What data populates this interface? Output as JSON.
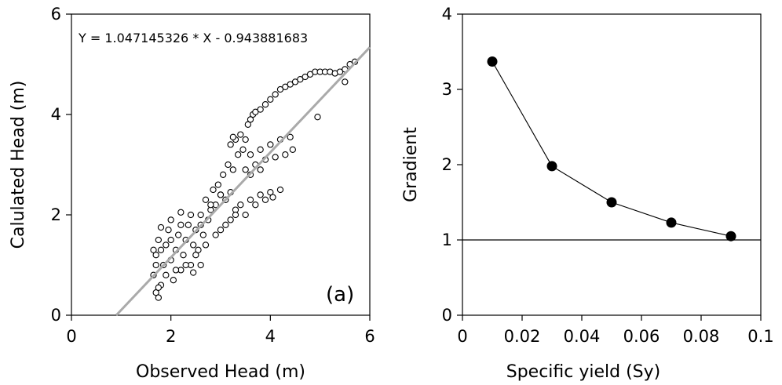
{
  "chart_data": [
    {
      "type": "scatter",
      "panel_label": "(a)",
      "equation": "Y = 1.047145326 * X - 0.943881683",
      "xlabel": "Observed Head (m)",
      "ylabel": "Calulated Head (m)",
      "xlim": [
        0,
        6
      ],
      "ylim": [
        0,
        6
      ],
      "xticks": [
        "0",
        "2",
        "4",
        "6"
      ],
      "yticks": [
        "0",
        "2",
        "4",
        "6"
      ],
      "grid": false,
      "regression_line": {
        "slope": 1.047145326,
        "intercept": -0.943881683,
        "color": "#aaaaaa"
      },
      "series": [
        {
          "marker": "open-circle",
          "points": [
            [
              1.65,
              0.8
            ],
            [
              1.7,
              1.2
            ],
            [
              1.75,
              1.5
            ],
            [
              1.7,
              0.45
            ],
            [
              1.75,
              0.35
            ],
            [
              1.8,
              0.6
            ],
            [
              1.85,
              1.0
            ],
            [
              1.9,
              1.4
            ],
            [
              1.95,
              1.7
            ],
            [
              2.0,
              1.1
            ],
            [
              2.05,
              0.7
            ],
            [
              2.1,
              1.3
            ],
            [
              2.15,
              1.6
            ],
            [
              2.2,
              0.9
            ],
            [
              2.25,
              1.2
            ],
            [
              2.3,
              1.5
            ],
            [
              2.35,
              1.8
            ],
            [
              2.4,
              1.0
            ],
            [
              2.45,
              1.4
            ],
            [
              2.5,
              1.7
            ],
            [
              2.55,
              1.3
            ],
            [
              2.6,
              2.0
            ],
            [
              2.65,
              1.6
            ],
            [
              2.7,
              2.3
            ],
            [
              2.75,
              1.9
            ],
            [
              2.8,
              2.1
            ],
            [
              2.85,
              2.5
            ],
            [
              2.9,
              2.2
            ],
            [
              2.95,
              2.6
            ],
            [
              3.0,
              2.4
            ],
            [
              3.05,
              2.8
            ],
            [
              3.1,
              2.3
            ],
            [
              3.15,
              3.0
            ],
            [
              3.2,
              3.4
            ],
            [
              3.25,
              2.9
            ],
            [
              3.3,
              3.5
            ],
            [
              3.35,
              3.2
            ],
            [
              3.4,
              3.6
            ],
            [
              3.45,
              3.3
            ],
            [
              3.5,
              3.5
            ],
            [
              3.55,
              3.8
            ],
            [
              3.6,
              3.9
            ],
            [
              3.65,
              4.0
            ],
            [
              3.7,
              4.05
            ],
            [
              3.8,
              4.1
            ],
            [
              3.9,
              4.2
            ],
            [
              4.0,
              4.3
            ],
            [
              4.1,
              4.4
            ],
            [
              4.2,
              4.5
            ],
            [
              4.3,
              4.55
            ],
            [
              4.4,
              4.6
            ],
            [
              4.5,
              4.65
            ],
            [
              4.6,
              4.7
            ],
            [
              4.7,
              4.75
            ],
            [
              4.8,
              4.8
            ],
            [
              4.9,
              4.85
            ],
            [
              5.0,
              4.85
            ],
            [
              5.1,
              4.85
            ],
            [
              5.2,
              4.85
            ],
            [
              5.3,
              4.82
            ],
            [
              5.4,
              4.85
            ],
            [
              5.5,
              4.9
            ],
            [
              5.6,
              5.0
            ],
            [
              5.7,
              5.05
            ],
            [
              4.95,
              3.95
            ],
            [
              5.5,
              4.65
            ],
            [
              3.5,
              2.9
            ],
            [
              3.7,
              3.0
            ],
            [
              3.9,
              3.1
            ],
            [
              4.1,
              3.15
            ],
            [
              4.3,
              3.2
            ],
            [
              4.45,
              3.3
            ],
            [
              3.6,
              3.2
            ],
            [
              3.8,
              3.3
            ],
            [
              4.0,
              3.4
            ],
            [
              4.2,
              3.5
            ],
            [
              4.4,
              3.55
            ],
            [
              3.0,
              2.4
            ],
            [
              3.2,
              2.45
            ],
            [
              3.4,
              2.2
            ],
            [
              3.6,
              2.3
            ],
            [
              3.8,
              2.4
            ],
            [
              4.0,
              2.45
            ],
            [
              3.3,
              2.1
            ],
            [
              3.5,
              2.0
            ],
            [
              3.7,
              2.2
            ],
            [
              3.9,
              2.3
            ],
            [
              3.0,
              1.7
            ],
            [
              3.2,
              1.9
            ],
            [
              2.8,
              2.2
            ],
            [
              2.6,
              1.8
            ],
            [
              2.4,
              2.0
            ],
            [
              2.2,
              1.8
            ],
            [
              2.0,
              1.5
            ],
            [
              1.8,
              1.3
            ],
            [
              1.7,
              1.0
            ],
            [
              1.9,
              0.8
            ],
            [
              2.1,
              0.9
            ],
            [
              2.3,
              1.0
            ],
            [
              2.5,
              1.2
            ],
            [
              2.7,
              1.4
            ],
            [
              2.9,
              1.6
            ],
            [
              3.1,
              1.8
            ],
            [
              3.3,
              2.0
            ],
            [
              3.6,
              2.8
            ],
            [
              3.8,
              2.9
            ],
            [
              4.2,
              2.5
            ],
            [
              4.05,
              2.35
            ],
            [
              2.6,
              1.0
            ],
            [
              2.45,
              0.85
            ],
            [
              1.8,
              1.75
            ],
            [
              2.0,
              1.9
            ],
            [
              2.2,
              2.05
            ],
            [
              1.65,
              1.3
            ],
            [
              1.75,
              0.55
            ],
            [
              3.25,
              3.55
            ]
          ]
        }
      ]
    },
    {
      "type": "line",
      "xlabel": "Specific yield (Sy)",
      "ylabel": "Gradient",
      "xlim": [
        0,
        0.1
      ],
      "ylim": [
        0,
        4
      ],
      "xticks": [
        "0",
        "0.02",
        "0.04",
        "0.06",
        "0.08",
        "0.1"
      ],
      "yticks": [
        "0",
        "1",
        "2",
        "3",
        "4"
      ],
      "grid": false,
      "reference_line_y": 1,
      "series": [
        {
          "x": [
            0.01,
            0.03,
            0.05,
            0.07,
            0.09
          ],
          "values": [
            3.37,
            1.98,
            1.5,
            1.23,
            1.05
          ],
          "marker": "filled-circle"
        }
      ]
    }
  ]
}
